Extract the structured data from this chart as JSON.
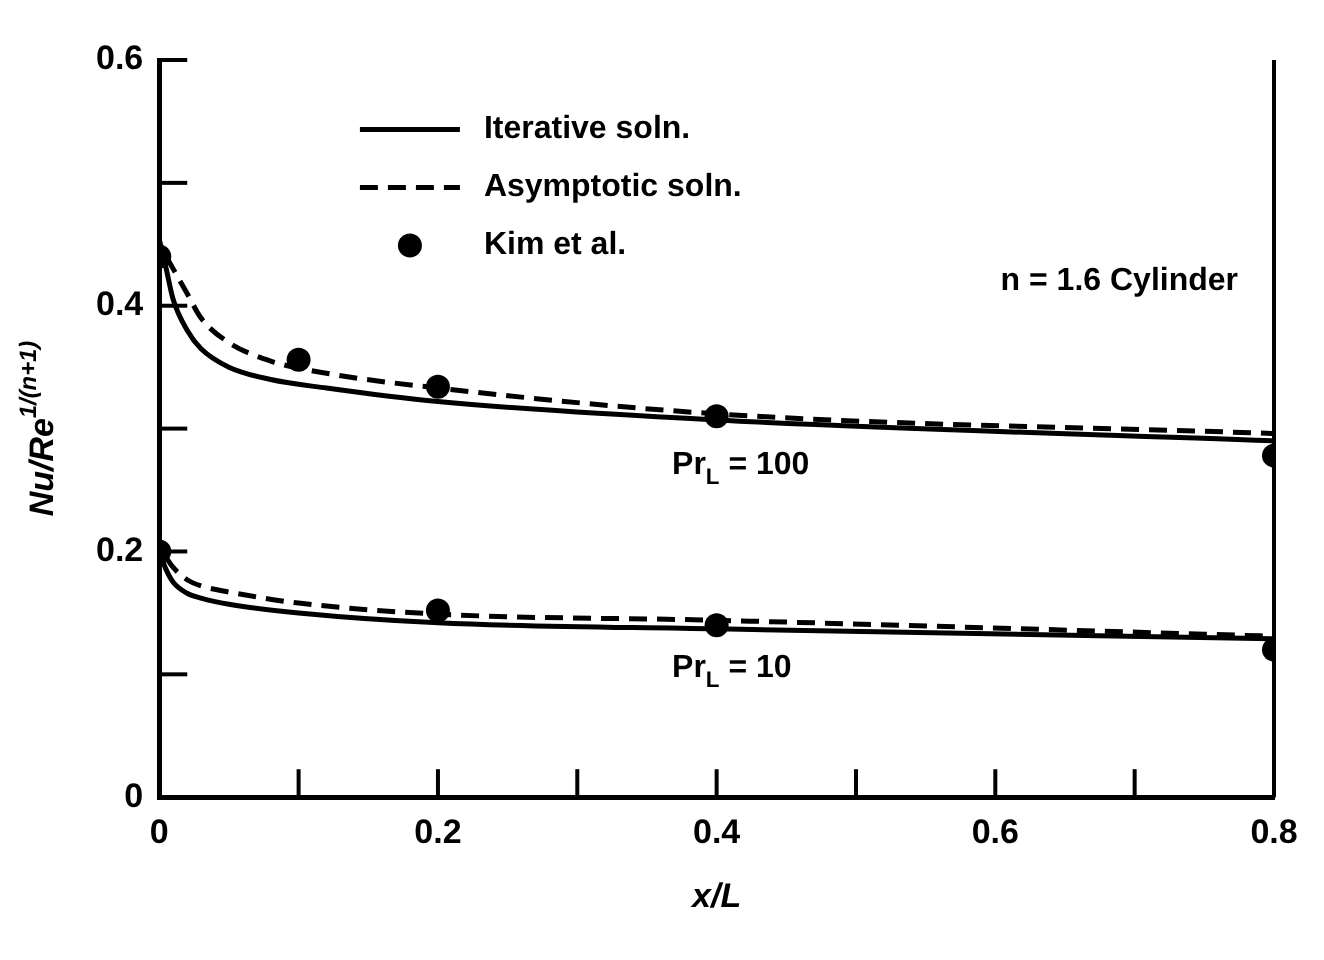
{
  "chart_data": {
    "type": "line",
    "xlabel": "x/L",
    "ylabel": "Nu/Re$^{1/(n+1)}$",
    "xlim": [
      0,
      0.8
    ],
    "ylim": [
      0,
      0.6
    ],
    "xticks": [
      0,
      {
        "value": 0.1,
        "label": null
      },
      0.2,
      {
        "value": 0.3,
        "label": null
      },
      0.4,
      {
        "value": 0.5,
        "label": null
      },
      0.6,
      {
        "value": 0.7,
        "label": null
      },
      0.8
    ],
    "yticks": [
      0,
      {
        "value": 0.1,
        "label": null
      },
      0.2,
      {
        "value": 0.3,
        "label": null
      },
      0.4,
      {
        "value": 0.5,
        "label": null
      },
      0.6
    ],
    "legend": "top",
    "annotations": [
      "n = 1.6 Cylinder",
      "Pr$_{L}$ = 100",
      "Pr$_{L}$ = 10"
    ],
    "series": [
      {
        "name": "Iterative soln.",
        "line_style": "solid",
        "color": "#000000",
        "x": [
          0,
          0.005,
          0.01,
          0.02,
          0.03,
          0.05,
          0.08,
          0.12,
          0.2,
          0.4,
          0.8
        ],
        "values": [
          0.454,
          0.43,
          0.405,
          0.38,
          0.365,
          0.35,
          0.34,
          0.333,
          0.322,
          0.307,
          0.29
        ]
      },
      {
        "name": "Asymptotic soln.",
        "line_style": "dashed",
        "color": "#000000",
        "x": [
          0.005,
          0.01,
          0.02,
          0.03,
          0.05,
          0.08,
          0.12,
          0.2,
          0.4,
          0.8
        ],
        "values": [
          0.44,
          0.43,
          0.41,
          0.39,
          0.37,
          0.355,
          0.345,
          0.333,
          0.312,
          0.296
        ]
      },
      {
        "line_style": "solid",
        "color": "#000000",
        "x": [
          0,
          0.005,
          0.01,
          0.02,
          0.03,
          0.05,
          0.1,
          0.2,
          0.4,
          0.8
        ],
        "values": [
          0.2,
          0.185,
          0.175,
          0.166,
          0.162,
          0.157,
          0.15,
          0.142,
          0.137,
          0.129
        ]
      },
      {
        "line_style": "dashed",
        "color": "#000000",
        "x": [
          0.005,
          0.01,
          0.02,
          0.03,
          0.05,
          0.1,
          0.2,
          0.4,
          0.8
        ],
        "values": [
          0.195,
          0.187,
          0.177,
          0.172,
          0.167,
          0.158,
          0.149,
          0.144,
          0.131
        ]
      },
      {
        "name": "Kim et al.",
        "type": "scatter",
        "marker": "circle",
        "color": "#000000",
        "x": [
          0,
          0.1,
          0.2,
          0.4,
          0.8,
          0,
          0.2,
          0.4,
          0.8
        ],
        "values": [
          0.44,
          0.356,
          0.334,
          0.31,
          0.278,
          0.2,
          0.152,
          0.14,
          0.12
        ]
      }
    ]
  }
}
